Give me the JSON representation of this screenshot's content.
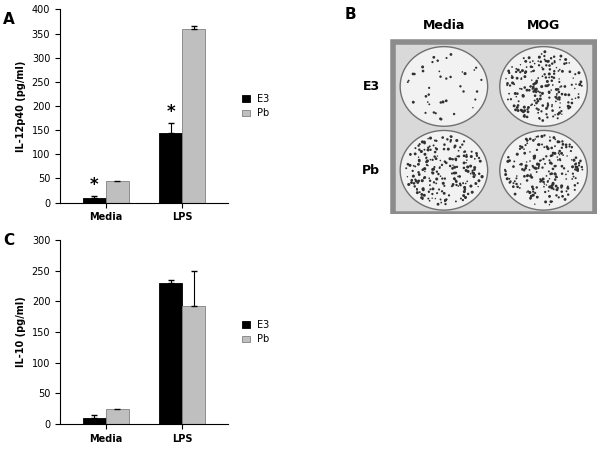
{
  "chart_data": [
    {
      "type": "bar",
      "label": "A",
      "y_label": "IL-12p40 (pg/ml)",
      "categories": [
        "Media",
        "LPS"
      ],
      "series": [
        {
          "name": "E3",
          "color": "#000000",
          "values": [
            10,
            145
          ],
          "errors": [
            3,
            20
          ]
        },
        {
          "name": "Pb",
          "color": "#bfbfbf",
          "values": [
            45,
            360
          ],
          "errors": [
            null,
            5
          ]
        }
      ],
      "annotations": [
        {
          "text": "*",
          "category": "Media",
          "series": "E3"
        },
        {
          "text": "*",
          "category": "LPS",
          "series": "E3"
        }
      ],
      "ylim": [
        0,
        400
      ],
      "yticks": [
        0,
        50,
        100,
        150,
        200,
        250,
        300,
        350,
        400
      ],
      "legend": "right",
      "grid": false
    },
    {
      "type": "bar",
      "label": "C",
      "y_label": "IL-10 (pg/ml)",
      "categories": [
        "Media",
        "LPS"
      ],
      "series": [
        {
          "name": "E3",
          "color": "#000000",
          "values": [
            10,
            230
          ],
          "errors": [
            5,
            5
          ]
        },
        {
          "name": "Pb",
          "color": "#bfbfbf",
          "values": [
            25,
            192
          ],
          "errors": [
            null,
            57
          ]
        }
      ],
      "ylim": [
        0,
        300
      ],
      "yticks": [
        0,
        50,
        100,
        150,
        200,
        250,
        300
      ],
      "legend": "right",
      "grid": false
    }
  ],
  "image_panel": {
    "label": "B",
    "columns": [
      "Media",
      "MOG"
    ],
    "rows": [
      "E3",
      "Pb"
    ]
  }
}
